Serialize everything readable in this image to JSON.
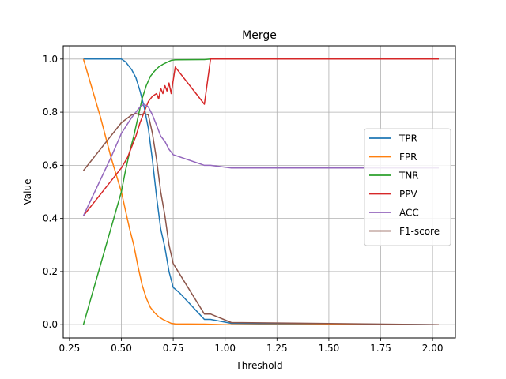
{
  "chart_data": {
    "type": "line",
    "title": "Merge",
    "xlabel": "Threshold",
    "ylabel": "Value",
    "xlim": [
      0.22,
      2.11
    ],
    "ylim": [
      -0.05,
      1.05
    ],
    "xticks": [
      0.25,
      0.5,
      0.75,
      1.0,
      1.25,
      1.5,
      1.75,
      2.0
    ],
    "xtick_labels": [
      "0.25",
      "0.50",
      "0.75",
      "1.00",
      "1.25",
      "1.50",
      "1.75",
      "2.00"
    ],
    "yticks": [
      0.0,
      0.2,
      0.4,
      0.6,
      0.8,
      1.0
    ],
    "ytick_labels": [
      "0.0",
      "0.2",
      "0.4",
      "0.6",
      "0.8",
      "1.0"
    ],
    "grid": true,
    "legend_position": "center-right",
    "series": [
      {
        "name": "TPR",
        "color": "#1f77b4",
        "x": [
          0.317,
          0.5,
          0.52,
          0.55,
          0.57,
          0.59,
          0.61,
          0.63,
          0.65,
          0.67,
          0.69,
          0.71,
          0.73,
          0.75,
          0.78,
          0.9,
          0.93,
          1.03,
          2.03
        ],
        "y": [
          1.0,
          1.0,
          0.99,
          0.96,
          0.93,
          0.88,
          0.82,
          0.74,
          0.62,
          0.48,
          0.36,
          0.29,
          0.2,
          0.14,
          0.12,
          0.02,
          0.02,
          0.005,
          0.0
        ]
      },
      {
        "name": "FPR",
        "color": "#ff7f0e",
        "x": [
          0.317,
          0.4,
          0.45,
          0.5,
          0.52,
          0.54,
          0.56,
          0.58,
          0.6,
          0.62,
          0.64,
          0.66,
          0.68,
          0.7,
          0.72,
          0.74,
          0.76,
          0.9,
          1.0,
          2.03
        ],
        "y": [
          1.0,
          0.78,
          0.63,
          0.5,
          0.43,
          0.36,
          0.3,
          0.22,
          0.15,
          0.1,
          0.065,
          0.045,
          0.03,
          0.02,
          0.012,
          0.005,
          0.003,
          0.002,
          0.0,
          0.0
        ]
      },
      {
        "name": "TNR",
        "color": "#2ca02c",
        "x": [
          0.317,
          0.5,
          0.52,
          0.54,
          0.56,
          0.58,
          0.6,
          0.62,
          0.64,
          0.66,
          0.68,
          0.7,
          0.72,
          0.74,
          0.76,
          0.9,
          0.93,
          2.03
        ],
        "y": [
          0.0,
          0.5,
          0.58,
          0.65,
          0.71,
          0.78,
          0.85,
          0.9,
          0.935,
          0.955,
          0.97,
          0.98,
          0.988,
          0.995,
          0.997,
          0.998,
          1.0,
          1.0
        ]
      },
      {
        "name": "PPV",
        "color": "#d62728",
        "x": [
          0.317,
          0.5,
          0.53,
          0.55,
          0.57,
          0.59,
          0.61,
          0.63,
          0.65,
          0.67,
          0.68,
          0.69,
          0.7,
          0.71,
          0.72,
          0.73,
          0.74,
          0.75,
          0.76,
          0.9,
          0.93,
          2.03
        ],
        "y": [
          0.41,
          0.59,
          0.63,
          0.67,
          0.71,
          0.76,
          0.8,
          0.84,
          0.86,
          0.87,
          0.85,
          0.89,
          0.87,
          0.9,
          0.88,
          0.91,
          0.87,
          0.92,
          0.97,
          0.83,
          1.0,
          1.0
        ]
      },
      {
        "name": "ACC",
        "color": "#9467bd",
        "x": [
          0.317,
          0.45,
          0.5,
          0.55,
          0.57,
          0.59,
          0.61,
          0.63,
          0.65,
          0.67,
          0.69,
          0.71,
          0.73,
          0.75,
          0.9,
          0.93,
          1.03,
          2.03
        ],
        "y": [
          0.41,
          0.63,
          0.72,
          0.78,
          0.8,
          0.82,
          0.83,
          0.82,
          0.79,
          0.75,
          0.71,
          0.69,
          0.66,
          0.64,
          0.6,
          0.6,
          0.59,
          0.59
        ]
      },
      {
        "name": "F1-score",
        "color": "#8c564b",
        "x": [
          0.317,
          0.5,
          0.55,
          0.57,
          0.59,
          0.61,
          0.63,
          0.65,
          0.67,
          0.69,
          0.71,
          0.73,
          0.75,
          0.9,
          0.93,
          1.03,
          2.03
        ],
        "y": [
          0.58,
          0.76,
          0.79,
          0.795,
          0.79,
          0.795,
          0.79,
          0.72,
          0.62,
          0.5,
          0.41,
          0.3,
          0.23,
          0.04,
          0.04,
          0.008,
          0.0
        ]
      }
    ]
  }
}
